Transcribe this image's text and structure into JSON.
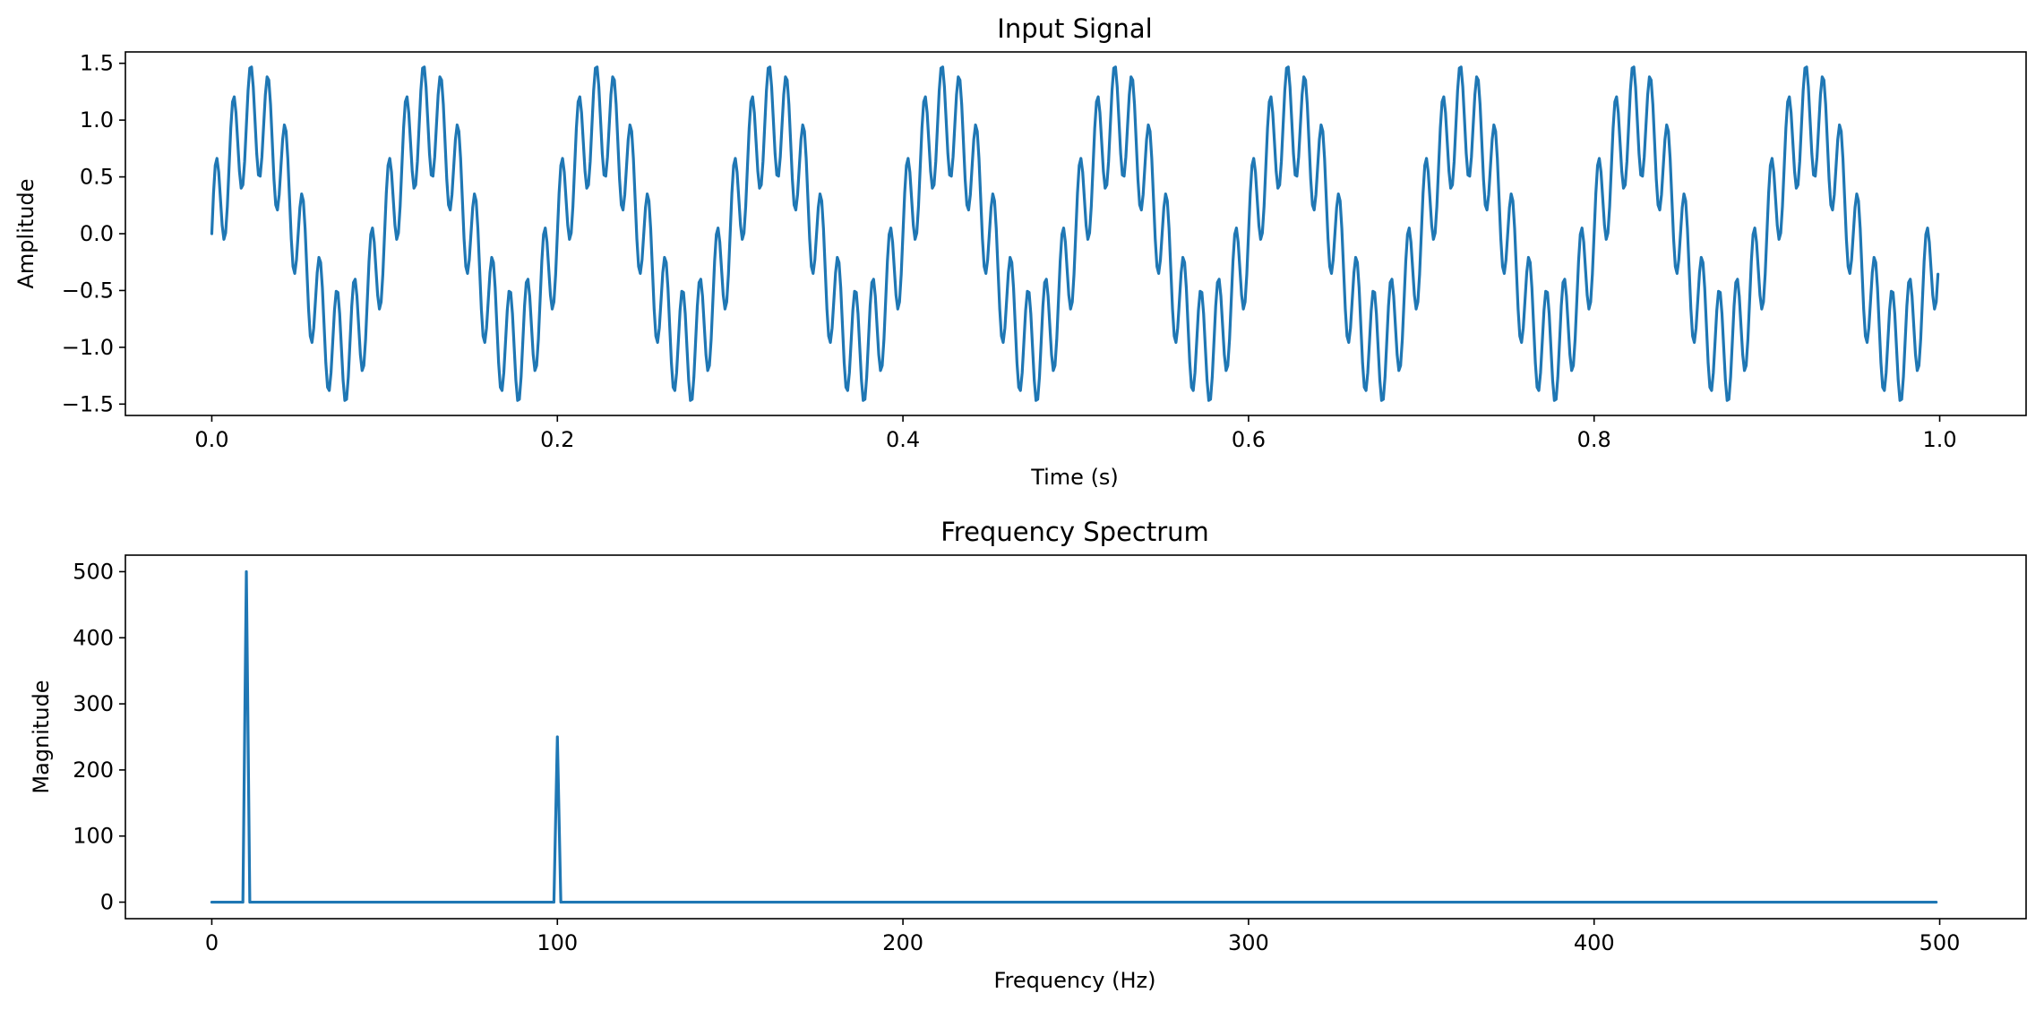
{
  "chart_data": [
    {
      "type": "line",
      "title": "Input Signal",
      "xlabel": "Time (s)",
      "ylabel": "Amplitude",
      "xlim": [
        -0.05,
        1.05
      ],
      "ylim": [
        -1.6,
        1.6
      ],
      "xticks": [
        0.0,
        0.2,
        0.4,
        0.6,
        0.8,
        1.0
      ],
      "xtick_labels": [
        "0.0",
        "0.2",
        "0.4",
        "0.6",
        "0.8",
        "1.0"
      ],
      "yticks": [
        -1.5,
        -1.0,
        -0.5,
        0.0,
        0.5,
        1.0,
        1.5
      ],
      "ytick_labels": [
        "−1.5",
        "−1.0",
        "−0.5",
        "0.0",
        "0.5",
        "1.0",
        "1.5"
      ],
      "grid": false,
      "color": "#1f77b4",
      "series": [
        {
          "function": "sin(2π·10·t) + 0.5·sin(2π·100·t)",
          "components": [
            {
              "frequency_hz": 10,
              "amplitude": 1.0
            },
            {
              "frequency_hz": 100,
              "amplitude": 0.5
            }
          ],
          "t_start": 0.0,
          "t_end": 0.999,
          "samples": 1000
        }
      ]
    },
    {
      "type": "line",
      "title": "Frequency Spectrum",
      "xlabel": "Frequency (Hz)",
      "ylabel": "Magnitude",
      "xlim": [
        -25,
        525
      ],
      "ylim": [
        -25,
        525
      ],
      "xticks": [
        0,
        100,
        200,
        300,
        400,
        500
      ],
      "xtick_labels": [
        "0",
        "100",
        "200",
        "300",
        "400",
        "500"
      ],
      "yticks": [
        0,
        100,
        200,
        300,
        400,
        500
      ],
      "ytick_labels": [
        "0",
        "100",
        "200",
        "300",
        "400",
        "500"
      ],
      "grid": false,
      "color": "#1f77b4",
      "series": [
        {
          "x_range": [
            0,
            499
          ],
          "baseline": 0,
          "peaks": [
            {
              "x": 10,
              "y": 500
            },
            {
              "x": 100,
              "y": 250
            }
          ]
        }
      ]
    }
  ]
}
